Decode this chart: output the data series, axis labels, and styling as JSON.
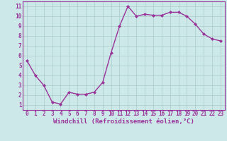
{
  "x": [
    0,
    1,
    2,
    3,
    4,
    5,
    6,
    7,
    8,
    9,
    10,
    11,
    12,
    13,
    14,
    15,
    16,
    17,
    18,
    19,
    20,
    21,
    22,
    23
  ],
  "y": [
    5.5,
    4.0,
    3.0,
    1.3,
    1.1,
    2.3,
    2.1,
    2.1,
    2.3,
    3.3,
    6.3,
    9.0,
    11.0,
    10.0,
    10.2,
    10.1,
    10.1,
    10.4,
    10.4,
    10.0,
    9.2,
    8.2,
    7.7,
    7.5
  ],
  "line_color": "#993399",
  "marker": "D",
  "marker_size": 2.0,
  "linewidth": 1.0,
  "bg_color": "#cce8e8",
  "grid_color": "#aacccc",
  "xlabel": "Windchill (Refroidissement éolien,°C)",
  "xlabel_fontsize": 6.5,
  "xlabel_color": "#993399",
  "xlim": [
    -0.5,
    23.5
  ],
  "ylim": [
    0.5,
    11.5
  ],
  "xticks": [
    0,
    1,
    2,
    3,
    4,
    5,
    6,
    7,
    8,
    9,
    10,
    11,
    12,
    13,
    14,
    15,
    16,
    17,
    18,
    19,
    20,
    21,
    22,
    23
  ],
  "yticks": [
    1,
    2,
    3,
    4,
    5,
    6,
    7,
    8,
    9,
    10,
    11
  ],
  "tick_fontsize": 5.5,
  "tick_color": "#993399",
  "axis_color": "#993399"
}
